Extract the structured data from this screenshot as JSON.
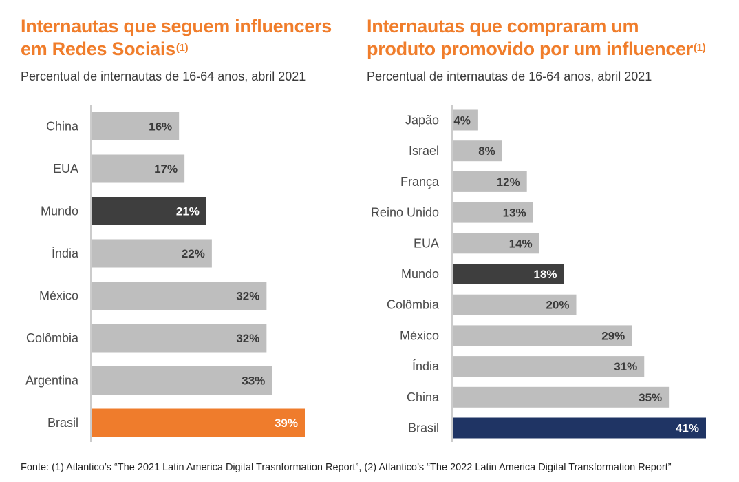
{
  "colors": {
    "title": "#f07d2b",
    "bar_default": "#bebebe",
    "bar_world": "#3e3e3e",
    "highlight_left": "#ef7c2c",
    "highlight_right": "#1f3464",
    "axis": "#999999",
    "value_dark": "#3a3a3a",
    "value_light": "#ffffff"
  },
  "chart_data": [
    {
      "type": "bar",
      "orientation": "horizontal",
      "title": "Internautas que seguem influencers em Redes Sociais",
      "title_line1": "Internautas que seguem influencers",
      "title_line2": "em Redes Sociais",
      "title_note": "(1)",
      "subtitle": "Percentual de internautas de 16-64 anos, abril 2021",
      "categories": [
        "China",
        "EUA",
        "Mundo",
        "Índia",
        "México",
        "Colômbia",
        "Argentina",
        "Brasil"
      ],
      "values": [
        16,
        17,
        21,
        22,
        32,
        32,
        33,
        39
      ],
      "value_labels": [
        "16%",
        "17%",
        "21%",
        "22%",
        "32%",
        "32%",
        "33%",
        "39%"
      ],
      "bar_styles": [
        "default",
        "default",
        "world",
        "default",
        "default",
        "default",
        "default",
        "highlight"
      ],
      "xlim": [
        0,
        39
      ]
    },
    {
      "type": "bar",
      "orientation": "horizontal",
      "title": "Internautas que compraram um produto promovido por um influencer",
      "title_line1": "Internautas que compraram um",
      "title_line2": "produto promovido por um influencer",
      "title_note": "(1)",
      "subtitle": "Percentual de internautas de 16-64 anos, abril 2021",
      "categories": [
        "Japão",
        "Israel",
        "França",
        "Reino Unido",
        "EUA",
        "Mundo",
        "Colômbia",
        "México",
        "Índia",
        "China",
        "Brasil"
      ],
      "values": [
        4,
        8,
        12,
        13,
        14,
        18,
        20,
        29,
        31,
        35,
        41
      ],
      "value_labels": [
        "4%",
        "8%",
        "12%",
        "13%",
        "14%",
        "18%",
        "20%",
        "29%",
        "31%",
        "35%",
        "41%"
      ],
      "bar_styles": [
        "default",
        "default",
        "default",
        "default",
        "default",
        "world",
        "default",
        "default",
        "default",
        "default",
        "highlight"
      ],
      "xlim": [
        0,
        41
      ]
    }
  ],
  "footer": {
    "source": "Fonte: (1) Atlantico’s “The 2021 Latin America Digital Trasnformation Report”, (2) Atlantico’s “The 2022 Latin America Digital Transformation Report”"
  }
}
